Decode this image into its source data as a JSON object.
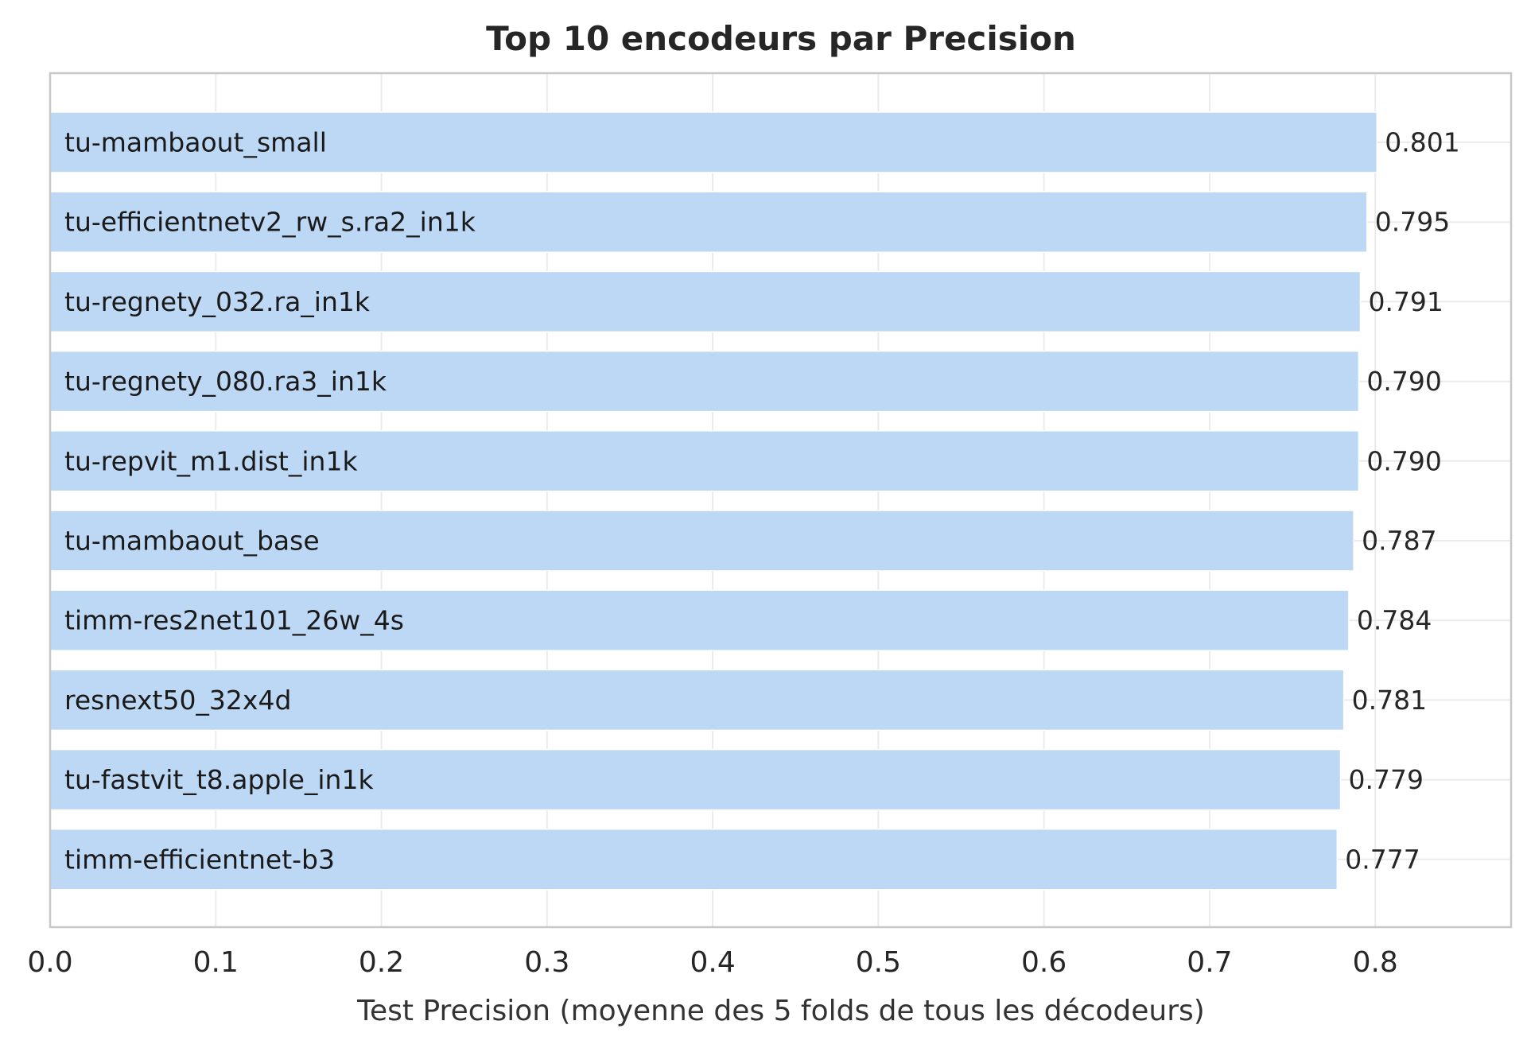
{
  "chart_data": {
    "type": "bar",
    "orientation": "horizontal",
    "title": "Top 10 encodeurs par Precision",
    "xlabel": "Test Precision (moyenne des 5 folds de tous les décodeurs)",
    "ylabel": "",
    "categories": [
      "tu-mambaout_small",
      "tu-efficientnetv2_rw_s.ra2_in1k",
      "tu-regnety_032.ra_in1k",
      "tu-regnety_080.ra3_in1k",
      "tu-repvit_m1.dist_in1k",
      "tu-mambaout_base",
      "timm-res2net101_26w_4s",
      "resnext50_32x4d",
      "tu-fastvit_t8.apple_in1k",
      "timm-efficientnet-b3"
    ],
    "values": [
      0.801,
      0.795,
      0.791,
      0.79,
      0.79,
      0.787,
      0.784,
      0.781,
      0.779,
      0.777
    ],
    "value_labels": [
      "0.801",
      "0.795",
      "0.791",
      "0.790",
      "0.790",
      "0.787",
      "0.784",
      "0.781",
      "0.779",
      "0.777"
    ],
    "xlim": [
      0,
      0.882
    ],
    "xticks": [
      0.0,
      0.1,
      0.2,
      0.3,
      0.4,
      0.5,
      0.6,
      0.7,
      0.8
    ],
    "xtick_labels": [
      "0.0",
      "0.1",
      "0.2",
      "0.3",
      "0.4",
      "0.5",
      "0.6",
      "0.7",
      "0.8"
    ],
    "grid": true,
    "legend": "none",
    "colors": {
      "bar": "#bcd8f5",
      "grid": "#ebebeb",
      "frame": "#c8c8c8"
    }
  }
}
